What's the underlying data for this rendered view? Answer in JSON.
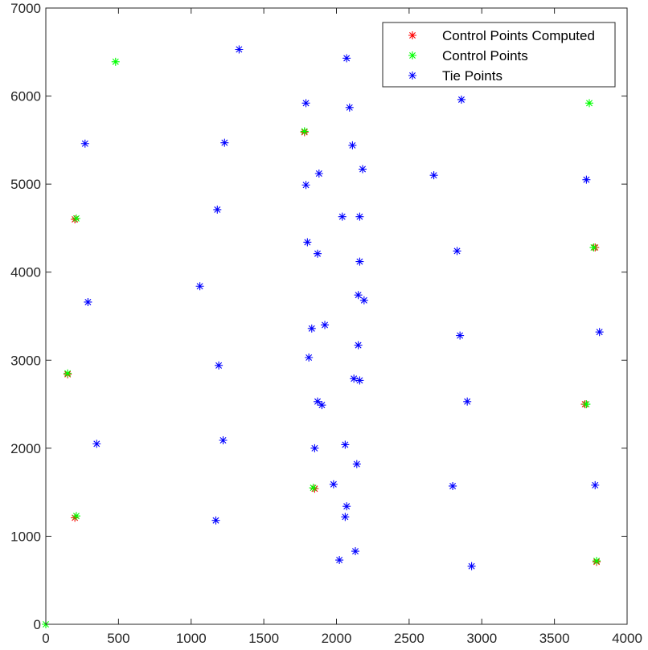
{
  "chart_data": {
    "type": "scatter",
    "title": "",
    "xlabel": "",
    "ylabel": "",
    "xlim": [
      0,
      4000
    ],
    "ylim": [
      0,
      7000
    ],
    "xticks": [
      0,
      500,
      1000,
      1500,
      2000,
      2500,
      3000,
      3500,
      4000
    ],
    "yticks": [
      0,
      1000,
      2000,
      3000,
      4000,
      5000,
      6000,
      7000
    ],
    "grid": false,
    "legend_position": "top-right",
    "marker": "asterisk",
    "series": [
      {
        "name": "Control Points Computed",
        "color": "#ff0000",
        "points": [
          [
            1780,
            5590
          ],
          [
            200,
            4600
          ],
          [
            3780,
            4280
          ],
          [
            150,
            2840
          ],
          [
            3710,
            2500
          ],
          [
            1850,
            1540
          ],
          [
            200,
            1210
          ],
          [
            3790,
            710
          ]
        ]
      },
      {
        "name": "Control Points",
        "color": "#00ff00",
        "points": [
          [
            480,
            6390
          ],
          [
            3740,
            5920
          ],
          [
            1780,
            5600
          ],
          [
            210,
            4610
          ],
          [
            3770,
            4280
          ],
          [
            150,
            2850
          ],
          [
            3720,
            2500
          ],
          [
            1840,
            1550
          ],
          [
            210,
            1230
          ],
          [
            3790,
            720
          ],
          [
            0,
            0
          ]
        ]
      },
      {
        "name": "Tie Points",
        "color": "#0000ff",
        "points": [
          [
            1330,
            6530
          ],
          [
            2070,
            6430
          ],
          [
            2860,
            5960
          ],
          [
            1790,
            5920
          ],
          [
            2090,
            5870
          ],
          [
            270,
            5460
          ],
          [
            1230,
            5470
          ],
          [
            2110,
            5440
          ],
          [
            2180,
            5170
          ],
          [
            1880,
            5120
          ],
          [
            2670,
            5100
          ],
          [
            3720,
            5050
          ],
          [
            1790,
            4990
          ],
          [
            1180,
            4710
          ],
          [
            2040,
            4630
          ],
          [
            2160,
            4630
          ],
          [
            1800,
            4340
          ],
          [
            2830,
            4240
          ],
          [
            1870,
            4210
          ],
          [
            2160,
            4120
          ],
          [
            1060,
            3840
          ],
          [
            2150,
            3740
          ],
          [
            2190,
            3680
          ],
          [
            290,
            3660
          ],
          [
            1920,
            3400
          ],
          [
            1830,
            3360
          ],
          [
            3810,
            3320
          ],
          [
            2850,
            3280
          ],
          [
            2150,
            3170
          ],
          [
            1810,
            3030
          ],
          [
            1190,
            2940
          ],
          [
            2120,
            2790
          ],
          [
            2160,
            2770
          ],
          [
            1870,
            2530
          ],
          [
            1900,
            2490
          ],
          [
            2900,
            2530
          ],
          [
            350,
            2050
          ],
          [
            1220,
            2090
          ],
          [
            2060,
            2040
          ],
          [
            1850,
            2000
          ],
          [
            2140,
            1820
          ],
          [
            1980,
            1590
          ],
          [
            2800,
            1570
          ],
          [
            3780,
            1580
          ],
          [
            2070,
            1340
          ],
          [
            2060,
            1220
          ],
          [
            1170,
            1180
          ],
          [
            2130,
            830
          ],
          [
            2020,
            730
          ],
          [
            2930,
            660
          ]
        ]
      }
    ]
  }
}
